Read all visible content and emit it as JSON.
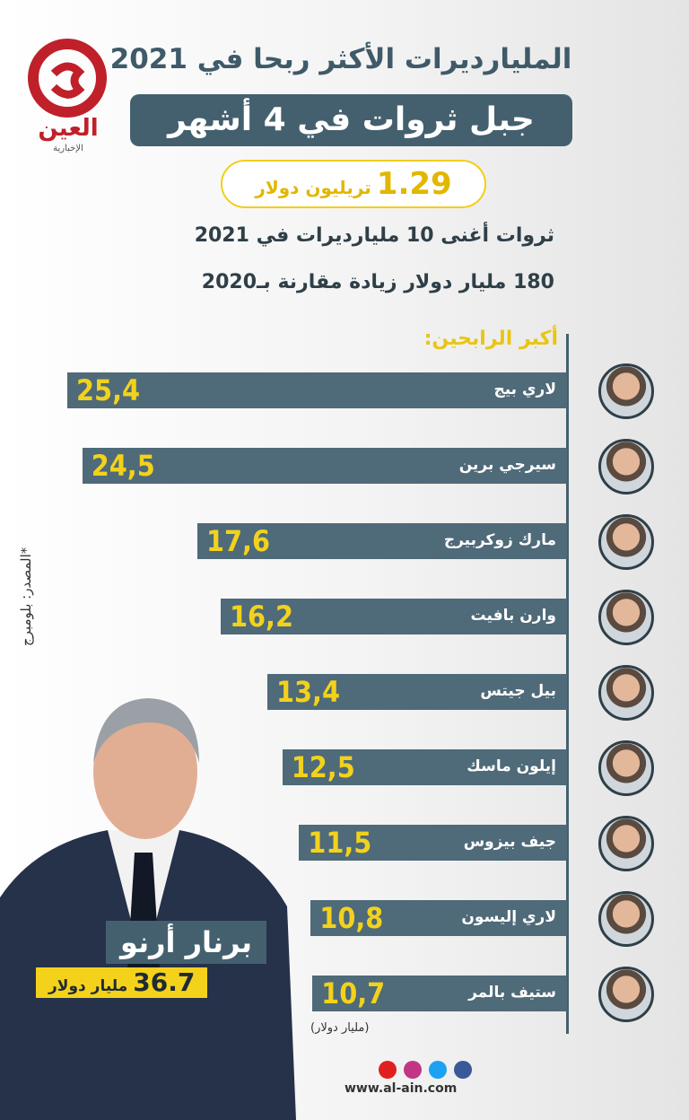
{
  "logo": {
    "name": "العين",
    "tagline": "الإخبارية"
  },
  "header": {
    "title": "المليارديرات الأكثر ربحا في 2021",
    "banner": "جبل ثروات في 4 أشهر",
    "total": {
      "value": 1.29,
      "unit": "تريليون دولار"
    },
    "lines": [
      "ثروات أغنى 10 مليارديرات في 2021",
      "180 مليار دولار زيادة مقارنة بـ2020"
    ]
  },
  "chart_data": {
    "type": "bar",
    "orientation": "horizontal",
    "title": "أكبر الرابحين:",
    "categories": [
      "لاري بيج",
      "سيرجي برين",
      "مارك زوكربيرج",
      "وارن بافيت",
      "بيل جيتس",
      "إيلون ماسك",
      "جيف بيزوس",
      "لاري إليسون",
      "ستيف بالمر"
    ],
    "values": [
      25.4,
      24.5,
      17.6,
      16.2,
      13.4,
      12.5,
      11.5,
      10.8,
      10.7
    ],
    "value_labels": [
      "25,4",
      "24,5",
      "17,6",
      "16,2",
      "13,4",
      "12,5",
      "11,5",
      "10,8",
      "10,7"
    ],
    "unit_label": "(مليار دولار)",
    "color": "#4f6a79"
  },
  "source": "*المصدر: بلومبرج",
  "highlight": {
    "name": "برنار أرنو",
    "value": 36.7,
    "unit": "مليار دولار"
  },
  "footer": {
    "url": "www.al-ain.com"
  }
}
